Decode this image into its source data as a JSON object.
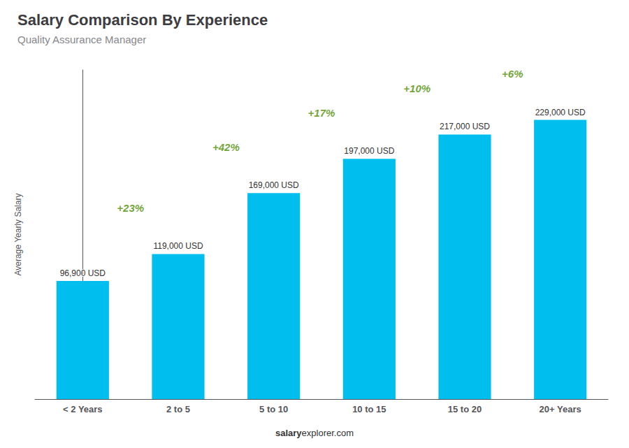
{
  "chart_data": {
    "type": "bar",
    "title": "Salary Comparison By Experience",
    "subtitle": "Quality Assurance Manager",
    "ylabel": "Average Yearly Salary",
    "source_bold": "salary",
    "source_normal": "explorer.com",
    "categories": [
      "< 2 Years",
      "2 to 5",
      "5 to 10",
      "10 to 15",
      "15 to 20",
      "20+ Years"
    ],
    "values": [
      96900,
      119000,
      169000,
      197000,
      217000,
      229000
    ],
    "value_labels": [
      "96,900 USD",
      "119,000 USD",
      "169,000 USD",
      "197,000 USD",
      "217,000 USD",
      "229,000 USD"
    ],
    "data_labels": true,
    "color": "#00BFEE",
    "annotations": [
      {
        "value": 23,
        "label": "+23%"
      },
      {
        "value": 42,
        "label": "+42%"
      },
      {
        "value": 17,
        "label": "+17%"
      },
      {
        "value": 10,
        "label": "+10%"
      },
      {
        "value": 6,
        "label": "+6%"
      }
    ],
    "ylim": [
      0,
      270000
    ],
    "tick_labels": "x",
    "grid": false
  }
}
